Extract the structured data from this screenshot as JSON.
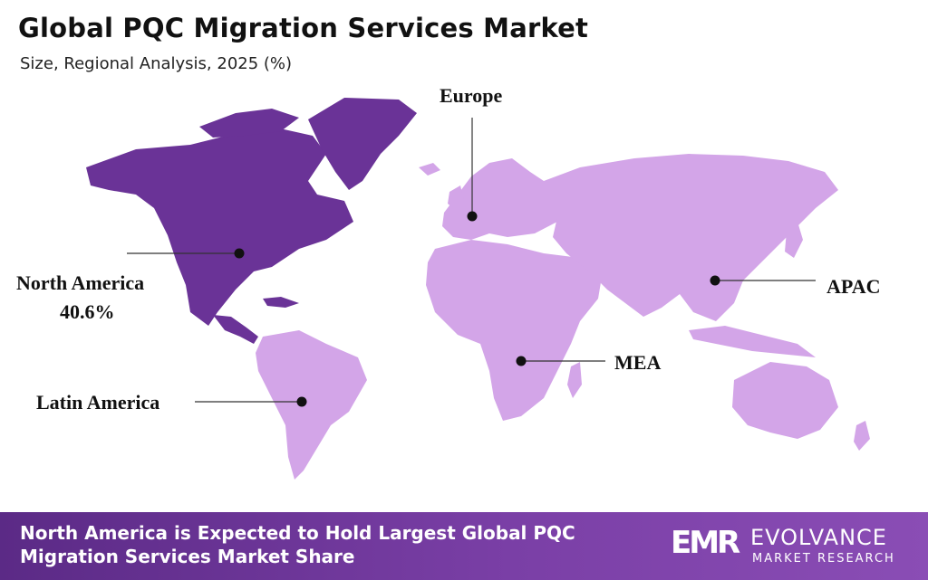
{
  "header": {
    "title": "Global PQC Migration Services Market",
    "subtitle": "Size, Regional Analysis, 2025 (%)"
  },
  "colors": {
    "highlight_region": "#6a3397",
    "other_regions": "#d3a5e8",
    "footer_bg": "#6b349a",
    "label_text": "#111111"
  },
  "regions": {
    "north_america": {
      "name": "North America",
      "value": "40.6%",
      "highlighted": true
    },
    "europe": {
      "name": "Europe"
    },
    "apac": {
      "name": "APAC"
    },
    "mea": {
      "name": "MEA"
    },
    "latin_america": {
      "name": "Latin America"
    }
  },
  "footer": {
    "text": "North America is Expected to Hold Largest Global PQC Migration Services Market Share",
    "logo_mark": "EMR",
    "logo_name": "EVOLVANCE",
    "logo_sub": "MARKET RESEARCH"
  }
}
